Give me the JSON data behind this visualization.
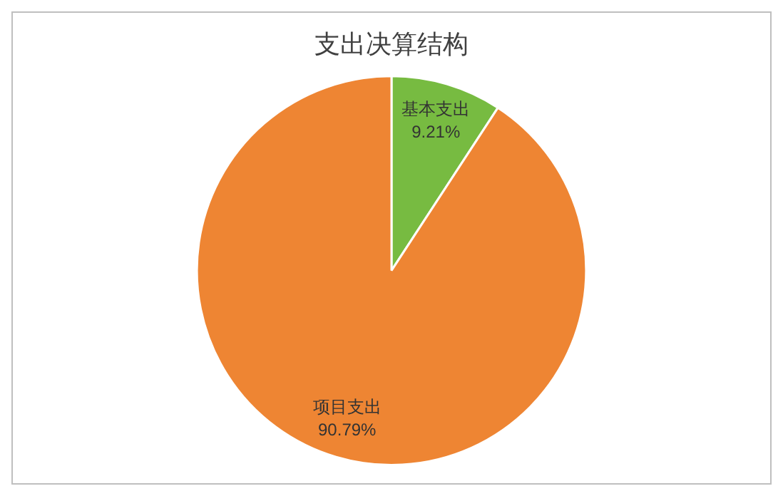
{
  "chart_data": {
    "type": "pie",
    "title": "支出决算结构",
    "categories": [
      "基本支出",
      "项目支出"
    ],
    "values": [
      9.21,
      90.79
    ],
    "value_labels": [
      "9.21%",
      "90.79%"
    ],
    "colors": [
      "#77bb41",
      "#ee8533"
    ],
    "legend": false
  }
}
